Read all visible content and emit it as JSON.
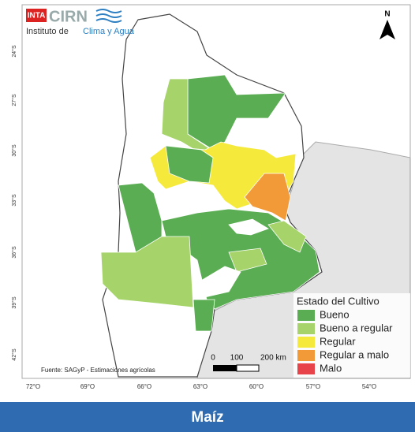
{
  "logo": {
    "badge": "INTA",
    "name": "CIRN",
    "institute": "Instituto de",
    "institute_highlight": "Clima y Agua"
  },
  "north": "N",
  "latitude_labels": [
    "24°S",
    "27°S",
    "30°S",
    "33°S",
    "36°S",
    "39°S",
    "42°S"
  ],
  "longitude_labels": [
    "72°O",
    "69°O",
    "66°O",
    "63°O",
    "60°O",
    "57°O",
    "54°O"
  ],
  "scale": {
    "labels": [
      "0",
      "100",
      "200 km"
    ]
  },
  "source": "Fuente: SAGyP - Estimaciones agrícolas",
  "legend": {
    "title": "Estado del Cultivo",
    "items": [
      {
        "label": "Bueno",
        "color": "#5aad52"
      },
      {
        "label": "Bueno a regular",
        "color": "#a6d46a"
      },
      {
        "label": "Regular",
        "color": "#f5ea3c"
      },
      {
        "label": "Regular a malo",
        "color": "#f39a38"
      },
      {
        "label": "Malo",
        "color": "#e8434a"
      }
    ]
  },
  "footer": {
    "title": "Maíz"
  }
}
